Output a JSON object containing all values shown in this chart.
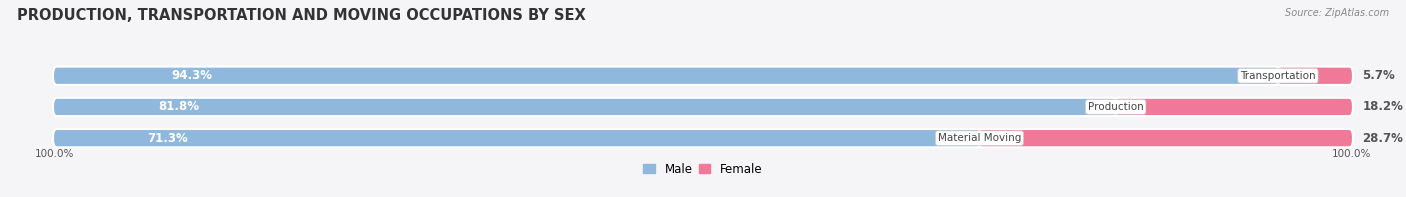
{
  "title": "PRODUCTION, TRANSPORTATION AND MOVING OCCUPATIONS BY SEX",
  "source_text": "Source: ZipAtlas.com",
  "categories": [
    "Transportation",
    "Production",
    "Material Moving"
  ],
  "male_values": [
    94.3,
    81.8,
    71.3
  ],
  "female_values": [
    5.7,
    18.2,
    28.7
  ],
  "male_color": "#90b8dc",
  "female_color": "#f07898",
  "bar_bg_color": "#e8e8f0",
  "bar_border_color": "#ffffff",
  "fig_bg_color": "#f5f5f8",
  "male_label": "Male",
  "female_label": "Female",
  "title_fontsize": 10.5,
  "label_fontsize": 8.5,
  "axis_label_left": "100.0%",
  "axis_label_right": "100.0%",
  "bar_height": 0.52,
  "figsize": [
    14.06,
    1.97
  ],
  "dpi": 100
}
